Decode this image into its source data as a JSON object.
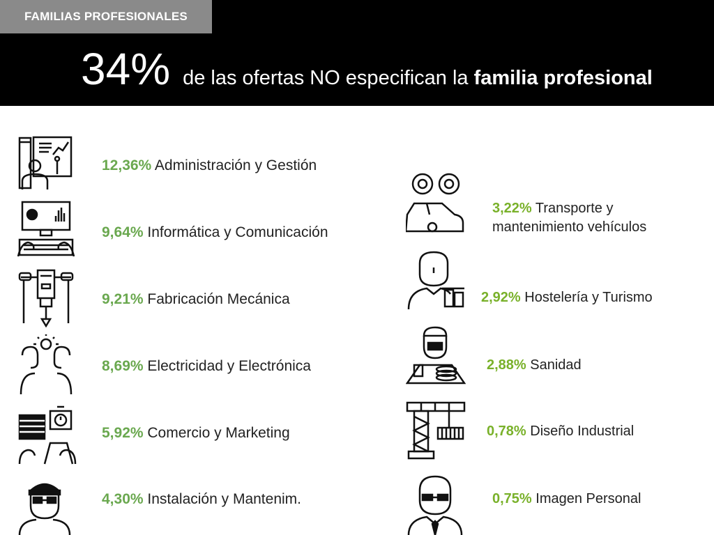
{
  "header": {
    "section_tag": "FAMILIAS PROFESIONALES",
    "headline_percent": "34%",
    "headline_text_1": "de las ofertas NO especifican la",
    "headline_text_bold": "familia profesional"
  },
  "colors": {
    "accent_green": "#6aa84f",
    "header_black": "#000000",
    "tag_grey": "#8a8a8a"
  },
  "left_items": [
    {
      "percent": "12,36%",
      "label": "Administración y Gestión",
      "icon": "presenter-board-icon"
    },
    {
      "percent": "9,64%",
      "label": "Informática y Comunicación",
      "icon": "computer-keyboard-icon"
    },
    {
      "percent": "9,21%",
      "label": " Fabricación Mecánica",
      "icon": "machine-press-icon"
    },
    {
      "percent": "8,69%",
      "label": " Electricidad y Electrónica",
      "icon": "idea-people-icon"
    },
    {
      "percent": "5,92%",
      "label": "Comercio y Marketing",
      "icon": "shop-counter-icon"
    },
    {
      "percent": "4,30%",
      "label": "Instalación y Mantenim.",
      "icon": "mechanic-cap-icon"
    }
  ],
  "right_items": [
    {
      "percent": "3,22%",
      "label_line1": "Transporte y",
      "label_line2": "mantenimiento vehículos",
      "icon": "car-wheels-icon"
    },
    {
      "percent": "2,92%",
      "label": "Hostelería y Turismo",
      "icon": "waiter-drinks-icon"
    },
    {
      "percent": "2,88%",
      "label": "Sanidad",
      "icon": "nurse-tray-icon"
    },
    {
      "percent": "0,78%",
      "label": "Diseño Industrial",
      "icon": "crane-icon"
    },
    {
      "percent": "0,75%",
      "label": "Imagen Personal",
      "icon": "man-tie-icon"
    }
  ]
}
